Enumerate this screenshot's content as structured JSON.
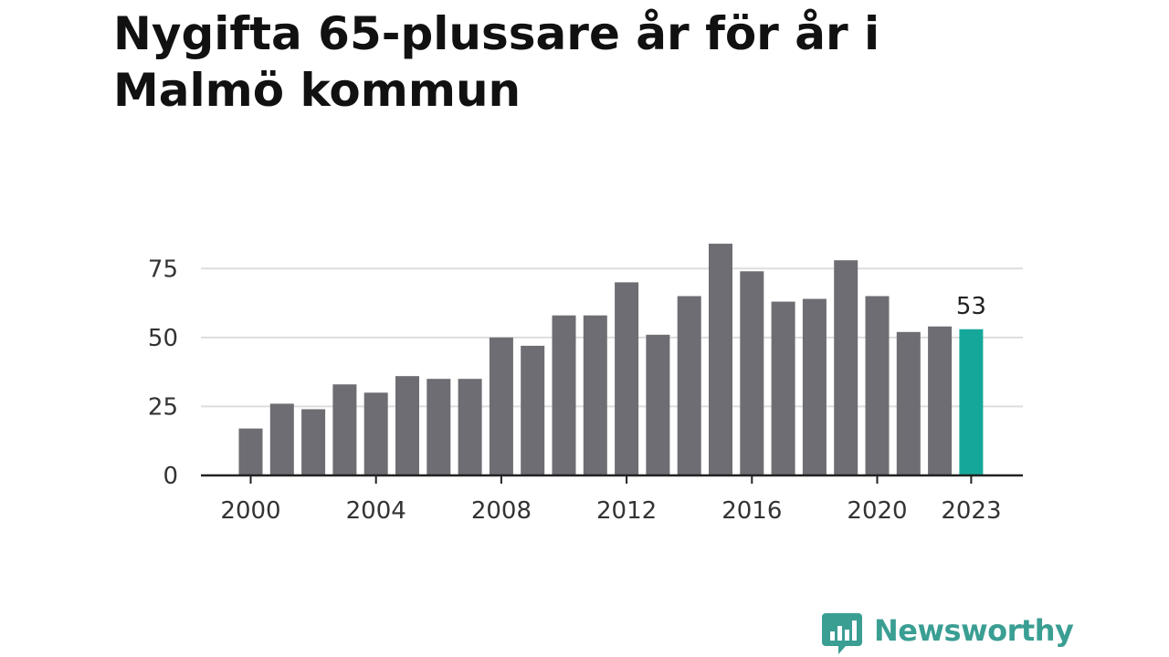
{
  "chart_data": {
    "type": "bar",
    "title": "Nygifta 65-plussare år för år i Malmö kommun",
    "categories": [
      "2000",
      "2001",
      "2002",
      "2003",
      "2004",
      "2005",
      "2006",
      "2007",
      "2008",
      "2009",
      "2010",
      "2011",
      "2012",
      "2013",
      "2014",
      "2015",
      "2016",
      "2017",
      "2018",
      "2019",
      "2020",
      "2021",
      "2022",
      "2023"
    ],
    "values": [
      17,
      26,
      24,
      33,
      30,
      36,
      35,
      35,
      50,
      47,
      58,
      58,
      70,
      51,
      65,
      84,
      74,
      63,
      64,
      78,
      65,
      52,
      54,
      53
    ],
    "ylim": [
      0,
      90
    ],
    "yticks": [
      0,
      25,
      50,
      75
    ],
    "xtick_labels": [
      "2000",
      "2004",
      "2008",
      "2012",
      "2016",
      "2020",
      "2023"
    ],
    "highlight": {
      "category": "2023",
      "label": "53"
    },
    "grid": true,
    "colors": {
      "bar": "#6e6d73",
      "highlight": "#15a89a",
      "grid": "#dddddd",
      "axis": "#222222"
    }
  },
  "brand": {
    "name": "Newsworthy",
    "icon": "newsworthy-chart-bubble-icon",
    "color": "#3a9e93"
  }
}
